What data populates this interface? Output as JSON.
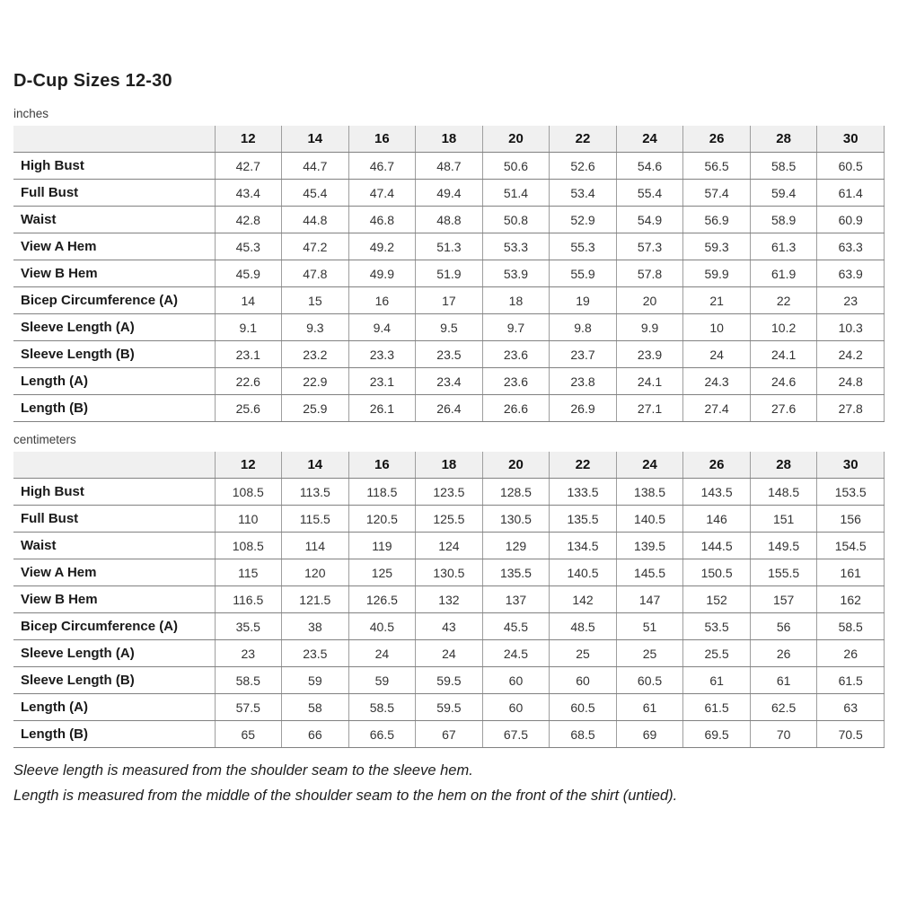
{
  "title": "D-Cup Sizes 12-30",
  "tables": [
    {
      "unit_label": "inches",
      "columns": [
        "12",
        "14",
        "16",
        "18",
        "20",
        "22",
        "24",
        "26",
        "28",
        "30"
      ],
      "rows": [
        {
          "label": "High Bust",
          "values": [
            "42.7",
            "44.7",
            "46.7",
            "48.7",
            "50.6",
            "52.6",
            "54.6",
            "56.5",
            "58.5",
            "60.5"
          ]
        },
        {
          "label": "Full Bust",
          "values": [
            "43.4",
            "45.4",
            "47.4",
            "49.4",
            "51.4",
            "53.4",
            "55.4",
            "57.4",
            "59.4",
            "61.4"
          ]
        },
        {
          "label": "Waist",
          "values": [
            "42.8",
            "44.8",
            "46.8",
            "48.8",
            "50.8",
            "52.9",
            "54.9",
            "56.9",
            "58.9",
            "60.9"
          ]
        },
        {
          "label": "View A Hem",
          "values": [
            "45.3",
            "47.2",
            "49.2",
            "51.3",
            "53.3",
            "55.3",
            "57.3",
            "59.3",
            "61.3",
            "63.3"
          ]
        },
        {
          "label": "View B Hem",
          "values": [
            "45.9",
            "47.8",
            "49.9",
            "51.9",
            "53.9",
            "55.9",
            "57.8",
            "59.9",
            "61.9",
            "63.9"
          ]
        },
        {
          "label": "Bicep Circumference (A)",
          "values": [
            "14",
            "15",
            "16",
            "17",
            "18",
            "19",
            "20",
            "21",
            "22",
            "23"
          ]
        },
        {
          "label": "Sleeve Length (A)",
          "values": [
            "9.1",
            "9.3",
            "9.4",
            "9.5",
            "9.7",
            "9.8",
            "9.9",
            "10",
            "10.2",
            "10.3"
          ]
        },
        {
          "label": "Sleeve Length (B)",
          "values": [
            "23.1",
            "23.2",
            "23.3",
            "23.5",
            "23.6",
            "23.7",
            "23.9",
            "24",
            "24.1",
            "24.2"
          ]
        },
        {
          "label": "Length (A)",
          "values": [
            "22.6",
            "22.9",
            "23.1",
            "23.4",
            "23.6",
            "23.8",
            "24.1",
            "24.3",
            "24.6",
            "24.8"
          ]
        },
        {
          "label": "Length (B)",
          "values": [
            "25.6",
            "25.9",
            "26.1",
            "26.4",
            "26.6",
            "26.9",
            "27.1",
            "27.4",
            "27.6",
            "27.8"
          ]
        }
      ]
    },
    {
      "unit_label": "centimeters",
      "columns": [
        "12",
        "14",
        "16",
        "18",
        "20",
        "22",
        "24",
        "26",
        "28",
        "30"
      ],
      "rows": [
        {
          "label": "High Bust",
          "values": [
            "108.5",
            "113.5",
            "118.5",
            "123.5",
            "128.5",
            "133.5",
            "138.5",
            "143.5",
            "148.5",
            "153.5"
          ]
        },
        {
          "label": "Full Bust",
          "values": [
            "110",
            "115.5",
            "120.5",
            "125.5",
            "130.5",
            "135.5",
            "140.5",
            "146",
            "151",
            "156"
          ]
        },
        {
          "label": "Waist",
          "values": [
            "108.5",
            "114",
            "119",
            "124",
            "129",
            "134.5",
            "139.5",
            "144.5",
            "149.5",
            "154.5"
          ]
        },
        {
          "label": "View A Hem",
          "values": [
            "115",
            "120",
            "125",
            "130.5",
            "135.5",
            "140.5",
            "145.5",
            "150.5",
            "155.5",
            "161"
          ]
        },
        {
          "label": "View B Hem",
          "values": [
            "116.5",
            "121.5",
            "126.5",
            "132",
            "137",
            "142",
            "147",
            "152",
            "157",
            "162"
          ]
        },
        {
          "label": "Bicep Circumference (A)",
          "values": [
            "35.5",
            "38",
            "40.5",
            "43",
            "45.5",
            "48.5",
            "51",
            "53.5",
            "56",
            "58.5"
          ]
        },
        {
          "label": "Sleeve Length (A)",
          "values": [
            "23",
            "23.5",
            "24",
            "24",
            "24.5",
            "25",
            "25",
            "25.5",
            "26",
            "26"
          ]
        },
        {
          "label": "Sleeve Length (B)",
          "values": [
            "58.5",
            "59",
            "59",
            "59.5",
            "60",
            "60",
            "60.5",
            "61",
            "61",
            "61.5"
          ]
        },
        {
          "label": "Length (A)",
          "values": [
            "57.5",
            "58",
            "58.5",
            "59.5",
            "60",
            "60.5",
            "61",
            "61.5",
            "62.5",
            "63"
          ]
        },
        {
          "label": "Length (B)",
          "values": [
            "65",
            "66",
            "66.5",
            "67",
            "67.5",
            "68.5",
            "69",
            "69.5",
            "70",
            "70.5"
          ]
        }
      ]
    }
  ],
  "notes": [
    "Sleeve length is measured from the shoulder seam to the sleeve hem.",
    "Length is measured from the middle of the shoulder seam to the hem on the front of the shirt (untied)."
  ],
  "colors": {
    "header_bg": "#f0f0f0",
    "border_horizontal": "#818181",
    "border_vertical": "#9e9e9e",
    "text_primary": "#1a1a1a",
    "text_values": "#333333"
  }
}
